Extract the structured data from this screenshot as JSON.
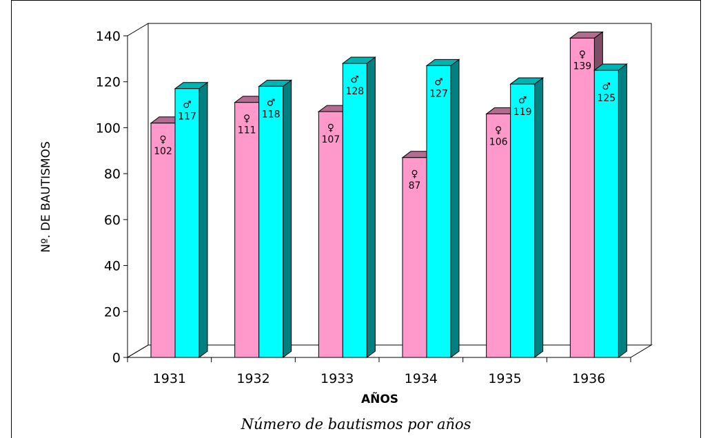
{
  "chart_data": {
    "type": "bar",
    "categories": [
      "1931",
      "1932",
      "1933",
      "1934",
      "1935",
      "1936"
    ],
    "series": [
      {
        "name": "",
        "symbol": "♀",
        "color": "#ff99cc",
        "values": [
          102,
          111,
          107,
          87,
          106,
          139
        ]
      },
      {
        "name": "",
        "symbol": "♂",
        "color": "#00ffff",
        "values": [
          117,
          118,
          128,
          127,
          119,
          125
        ]
      }
    ],
    "title": "",
    "xlabel": "AÑOS",
    "ylabel": "Nº. DE BAUTISMOS",
    "ylim": [
      0,
      140
    ],
    "yticks": [
      "0",
      "20",
      "40",
      "60",
      "80",
      "100",
      "120",
      "140"
    ],
    "grid": false,
    "legend": "none"
  },
  "caption": "Número de bautismos por años"
}
